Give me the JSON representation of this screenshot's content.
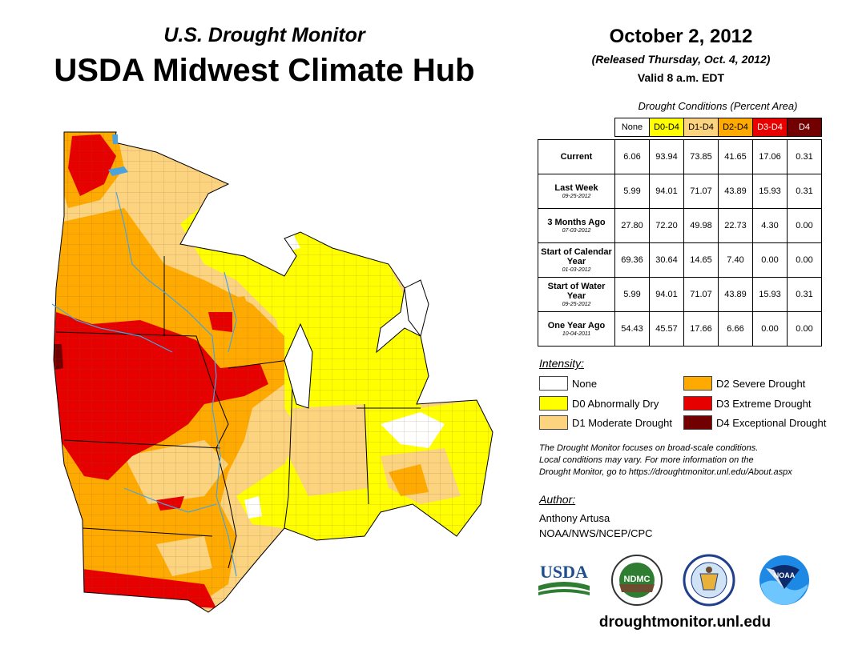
{
  "header": {
    "subtitle": "U.S. Drought Monitor",
    "title": "USDA Midwest Climate Hub"
  },
  "info": {
    "date": "October 2, 2012",
    "released": "(Released Thursday, Oct. 4, 2012)",
    "valid": "Valid 8 a.m. EDT"
  },
  "table": {
    "caption": "Drought Conditions (Percent Area)",
    "columns": [
      "None",
      "D0-D4",
      "D1-D4",
      "D2-D4",
      "D3-D4",
      "D4"
    ],
    "column_colors": [
      "#ffffff",
      "#ffff00",
      "#fcd37f",
      "#ffaa00",
      "#e60000",
      "#730000"
    ],
    "rows": [
      {
        "label": "Current",
        "date": "",
        "values": [
          "6.06",
          "93.94",
          "73.85",
          "41.65",
          "17.06",
          "0.31"
        ]
      },
      {
        "label": "Last Week",
        "date": "09-25-2012",
        "values": [
          "5.99",
          "94.01",
          "71.07",
          "43.89",
          "15.93",
          "0.31"
        ]
      },
      {
        "label": "3 Months Ago",
        "date": "07-03-2012",
        "values": [
          "27.80",
          "72.20",
          "49.98",
          "22.73",
          "4.30",
          "0.00"
        ]
      },
      {
        "label": "Start of Calendar Year",
        "date": "01-03-2012",
        "values": [
          "69.36",
          "30.64",
          "14.65",
          "7.40",
          "0.00",
          "0.00"
        ]
      },
      {
        "label": "Start of Water Year",
        "date": "09-25-2012",
        "values": [
          "5.99",
          "94.01",
          "71.07",
          "43.89",
          "15.93",
          "0.31"
        ]
      },
      {
        "label": "One Year Ago",
        "date": "10-04-2011",
        "values": [
          "54.43",
          "45.57",
          "17.66",
          "6.66",
          "0.00",
          "0.00"
        ]
      }
    ]
  },
  "legend": {
    "heading": "Intensity:",
    "items": [
      {
        "label": "None",
        "color": "#ffffff"
      },
      {
        "label": "D0 Abnormally Dry",
        "color": "#ffff00"
      },
      {
        "label": "D1 Moderate Drought",
        "color": "#fcd37f"
      },
      {
        "label": "D2 Severe Drought",
        "color": "#ffaa00"
      },
      {
        "label": "D3 Extreme Drought",
        "color": "#e60000"
      },
      {
        "label": "D4 Exceptional Drought",
        "color": "#730000"
      }
    ]
  },
  "note": {
    "line1": "The Drought Monitor focuses on broad-scale conditions.",
    "line2": "Local conditions may vary. For more information on the",
    "line3": "Drought Monitor, go to https://droughtmonitor.unl.edu/About.aspx"
  },
  "author": {
    "heading": "Author:",
    "name": "Anthony Artusa",
    "org": "NOAA/NWS/NCEP/CPC"
  },
  "logos": {
    "usda": "USDA",
    "ndmc": "NDMC",
    "noaa": "NOAA"
  },
  "footer": {
    "url": "droughtmonitor.unl.edu"
  }
}
